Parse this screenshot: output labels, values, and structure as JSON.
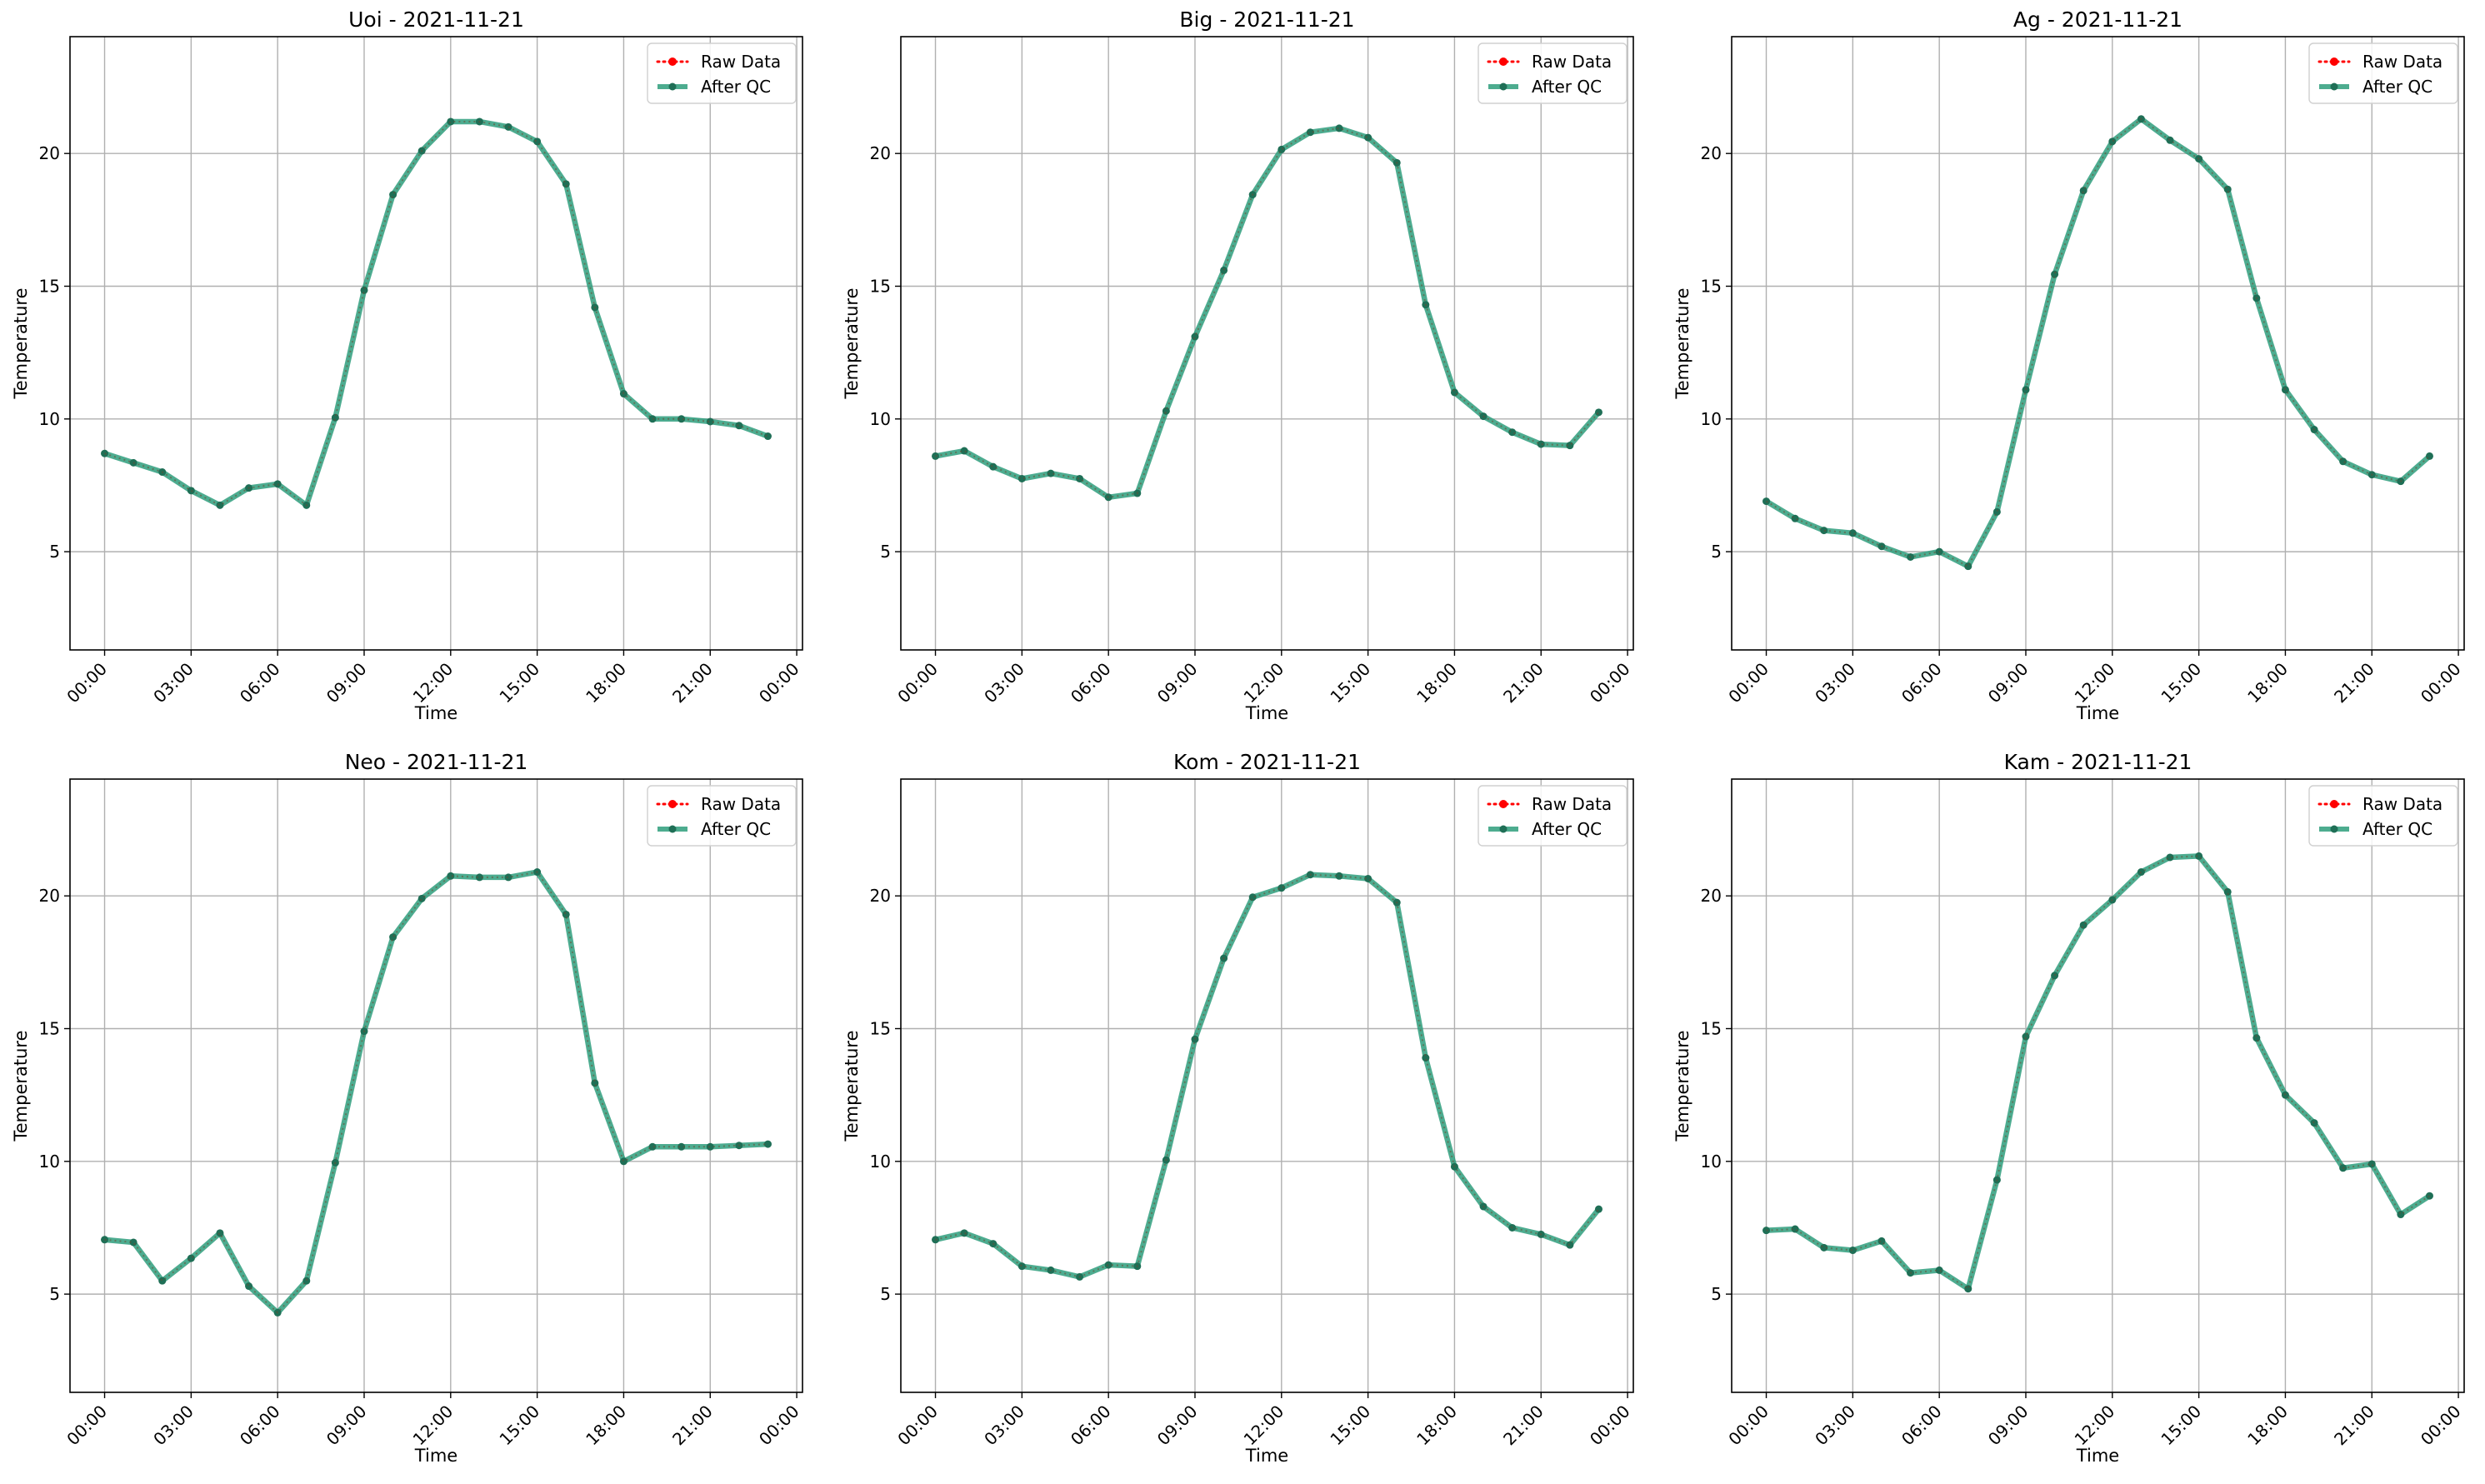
{
  "figure": {
    "background": "#ffffff"
  },
  "style": {
    "raw_color": "#ff0000",
    "qc_color": "#2e9e7c",
    "qc_marker_color": "#1f6f56",
    "grid_color": "#b0b0b0"
  },
  "chart_data": [
    {
      "type": "line",
      "title": "Uoi - 2021-11-21",
      "xlabel": "Time",
      "ylabel": "Temperature",
      "x_ticks": [
        "00:00",
        "03:00",
        "06:00",
        "09:00",
        "12:00",
        "15:00",
        "18:00",
        "21:00",
        "00:00"
      ],
      "y_ticks": [
        5,
        10,
        15,
        20
      ],
      "ylim": [
        1.3,
        24.4
      ],
      "xlim_hours": [
        -1.2,
        24.2
      ],
      "grid": true,
      "legend_position": "top-right",
      "x": [
        0,
        1,
        2,
        3,
        4,
        5,
        6,
        7,
        8,
        9,
        10,
        11,
        12,
        13,
        14,
        15,
        16,
        17,
        18,
        19,
        20,
        21,
        22,
        23
      ],
      "series": [
        {
          "name": "Raw Data",
          "values": [
            8.7,
            8.35,
            8.0,
            7.3,
            6.75,
            7.4,
            7.55,
            6.75,
            10.05,
            14.85,
            18.45,
            20.1,
            21.2,
            21.2,
            21.0,
            20.45,
            18.85,
            14.2,
            10.95,
            10.0,
            10.0,
            9.9,
            9.75,
            9.35
          ]
        },
        {
          "name": "After QC",
          "values": [
            8.7,
            8.35,
            8.0,
            7.3,
            6.75,
            7.4,
            7.55,
            6.75,
            10.05,
            14.85,
            18.45,
            20.1,
            21.2,
            21.2,
            21.0,
            20.45,
            18.85,
            14.2,
            10.95,
            10.0,
            10.0,
            9.9,
            9.75,
            9.35
          ]
        }
      ]
    },
    {
      "type": "line",
      "title": "Big - 2021-11-21",
      "xlabel": "Time",
      "ylabel": "Temperature",
      "x_ticks": [
        "00:00",
        "03:00",
        "06:00",
        "09:00",
        "12:00",
        "15:00",
        "18:00",
        "21:00",
        "00:00"
      ],
      "y_ticks": [
        5,
        10,
        15,
        20
      ],
      "ylim": [
        1.3,
        24.4
      ],
      "xlim_hours": [
        -1.2,
        24.2
      ],
      "grid": true,
      "legend_position": "top-right",
      "x": [
        0,
        1,
        2,
        3,
        4,
        5,
        6,
        7,
        8,
        9,
        10,
        11,
        12,
        13,
        14,
        15,
        16,
        17,
        18,
        19,
        20,
        21,
        22,
        23
      ],
      "series": [
        {
          "name": "Raw Data",
          "values": [
            8.6,
            8.8,
            8.2,
            7.75,
            7.95,
            7.75,
            7.05,
            7.2,
            10.3,
            13.1,
            15.6,
            18.45,
            20.15,
            20.8,
            20.95,
            20.6,
            19.65,
            14.3,
            11.0,
            10.1,
            9.5,
            9.05,
            9.0,
            10.25
          ]
        },
        {
          "name": "After QC",
          "values": [
            8.6,
            8.8,
            8.2,
            7.75,
            7.95,
            7.75,
            7.05,
            7.2,
            10.3,
            13.1,
            15.6,
            18.45,
            20.15,
            20.8,
            20.95,
            20.6,
            19.65,
            14.3,
            11.0,
            10.1,
            9.5,
            9.05,
            9.0,
            10.25
          ]
        }
      ]
    },
    {
      "type": "line",
      "title": "Ag - 2021-11-21",
      "xlabel": "Time",
      "ylabel": "Temperature",
      "x_ticks": [
        "00:00",
        "03:00",
        "06:00",
        "09:00",
        "12:00",
        "15:00",
        "18:00",
        "21:00",
        "00:00"
      ],
      "y_ticks": [
        5,
        10,
        15,
        20
      ],
      "ylim": [
        1.3,
        24.4
      ],
      "xlim_hours": [
        -1.2,
        24.2
      ],
      "grid": true,
      "legend_position": "top-right",
      "x": [
        0,
        1,
        2,
        3,
        4,
        5,
        6,
        7,
        8,
        9,
        10,
        11,
        12,
        13,
        14,
        15,
        16,
        17,
        18,
        19,
        20,
        21,
        22,
        23
      ],
      "series": [
        {
          "name": "Raw Data",
          "values": [
            6.9,
            6.25,
            5.8,
            5.7,
            5.2,
            4.8,
            5.0,
            4.45,
            6.5,
            11.1,
            15.45,
            18.6,
            20.45,
            21.3,
            20.5,
            19.8,
            18.65,
            14.55,
            11.1,
            9.6,
            8.4,
            7.9,
            7.65,
            8.6
          ]
        },
        {
          "name": "After QC",
          "values": [
            6.9,
            6.25,
            5.8,
            5.7,
            5.2,
            4.8,
            5.0,
            4.45,
            6.5,
            11.1,
            15.45,
            18.6,
            20.45,
            21.3,
            20.5,
            19.8,
            18.65,
            14.55,
            11.1,
            9.6,
            8.4,
            7.9,
            7.65,
            8.6
          ]
        }
      ]
    },
    {
      "type": "line",
      "title": "Neo - 2021-11-21",
      "xlabel": "Time",
      "ylabel": "Temperature",
      "x_ticks": [
        "00:00",
        "03:00",
        "06:00",
        "09:00",
        "12:00",
        "15:00",
        "18:00",
        "21:00",
        "00:00"
      ],
      "y_ticks": [
        5,
        10,
        15,
        20
      ],
      "ylim": [
        1.3,
        24.4
      ],
      "xlim_hours": [
        -1.2,
        24.2
      ],
      "grid": true,
      "legend_position": "top-right",
      "x": [
        0,
        1,
        2,
        3,
        4,
        5,
        6,
        7,
        8,
        9,
        10,
        11,
        12,
        13,
        14,
        15,
        16,
        17,
        18,
        19,
        20,
        21,
        22,
        23
      ],
      "series": [
        {
          "name": "Raw Data",
          "values": [
            7.05,
            6.95,
            5.5,
            6.35,
            7.3,
            5.3,
            4.3,
            5.5,
            9.95,
            14.9,
            18.45,
            19.9,
            20.75,
            20.7,
            20.7,
            20.9,
            19.3,
            12.95,
            10.0,
            10.55,
            10.55,
            10.55,
            10.6,
            10.65
          ]
        },
        {
          "name": "After QC",
          "values": [
            7.05,
            6.95,
            5.5,
            6.35,
            7.3,
            5.3,
            4.3,
            5.5,
            9.95,
            14.9,
            18.45,
            19.9,
            20.75,
            20.7,
            20.7,
            20.9,
            19.3,
            12.95,
            10.0,
            10.55,
            10.55,
            10.55,
            10.6,
            10.65
          ]
        }
      ]
    },
    {
      "type": "line",
      "title": "Kom - 2021-11-21",
      "xlabel": "Time",
      "ylabel": "Temperature",
      "x_ticks": [
        "00:00",
        "03:00",
        "06:00",
        "09:00",
        "12:00",
        "15:00",
        "18:00",
        "21:00",
        "00:00"
      ],
      "y_ticks": [
        5,
        10,
        15,
        20
      ],
      "ylim": [
        1.3,
        24.4
      ],
      "xlim_hours": [
        -1.2,
        24.2
      ],
      "grid": true,
      "legend_position": "top-right",
      "x": [
        0,
        1,
        2,
        3,
        4,
        5,
        6,
        7,
        8,
        9,
        10,
        11,
        12,
        13,
        14,
        15,
        16,
        17,
        18,
        19,
        20,
        21,
        22,
        23
      ],
      "series": [
        {
          "name": "Raw Data",
          "values": [
            7.05,
            7.3,
            6.9,
            6.05,
            5.9,
            5.65,
            6.1,
            6.05,
            10.05,
            14.6,
            17.65,
            19.95,
            20.3,
            20.8,
            20.75,
            20.65,
            19.75,
            13.9,
            9.8,
            8.3,
            7.5,
            7.25,
            6.85,
            8.2
          ]
        },
        {
          "name": "After QC",
          "values": [
            7.05,
            7.3,
            6.9,
            6.05,
            5.9,
            5.65,
            6.1,
            6.05,
            10.05,
            14.6,
            17.65,
            19.95,
            20.3,
            20.8,
            20.75,
            20.65,
            19.75,
            13.9,
            9.8,
            8.3,
            7.5,
            7.25,
            6.85,
            8.2
          ]
        }
      ]
    },
    {
      "type": "line",
      "title": "Kam - 2021-11-21",
      "xlabel": "Time",
      "ylabel": "Temperature",
      "x_ticks": [
        "00:00",
        "03:00",
        "06:00",
        "09:00",
        "12:00",
        "15:00",
        "18:00",
        "21:00",
        "00:00"
      ],
      "y_ticks": [
        5,
        10,
        15,
        20
      ],
      "ylim": [
        1.3,
        24.4
      ],
      "xlim_hours": [
        -1.2,
        24.2
      ],
      "grid": true,
      "legend_position": "top-right",
      "x": [
        0,
        1,
        2,
        3,
        4,
        5,
        6,
        7,
        8,
        9,
        10,
        11,
        12,
        13,
        14,
        15,
        16,
        17,
        18,
        19,
        20,
        21,
        22,
        23
      ],
      "series": [
        {
          "name": "Raw Data",
          "values": [
            7.4,
            7.45,
            6.75,
            6.65,
            7.0,
            5.8,
            5.9,
            5.2,
            9.3,
            14.7,
            17.0,
            18.9,
            19.85,
            20.9,
            21.45,
            21.5,
            20.15,
            14.65,
            12.5,
            11.45,
            9.75,
            9.9,
            8.0,
            8.7
          ]
        },
        {
          "name": "After QC",
          "values": [
            7.4,
            7.45,
            6.75,
            6.65,
            7.0,
            5.8,
            5.9,
            5.2,
            9.3,
            14.7,
            17.0,
            18.9,
            19.85,
            20.9,
            21.45,
            21.5,
            20.15,
            14.65,
            12.5,
            11.45,
            9.75,
            9.9,
            8.0,
            8.7
          ]
        }
      ]
    }
  ]
}
